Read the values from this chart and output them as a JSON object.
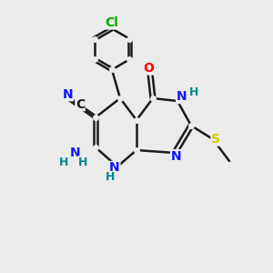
{
  "background_color": "#ebebeb",
  "bond_color": "#1a1a1a",
  "bond_width": 1.8,
  "atom_colors": {
    "C": "#1a1a1a",
    "N": "#1414ff",
    "O": "#ff0000",
    "S": "#cccc00",
    "Cl": "#00aa00",
    "H": "#008888"
  },
  "font_size": 10
}
